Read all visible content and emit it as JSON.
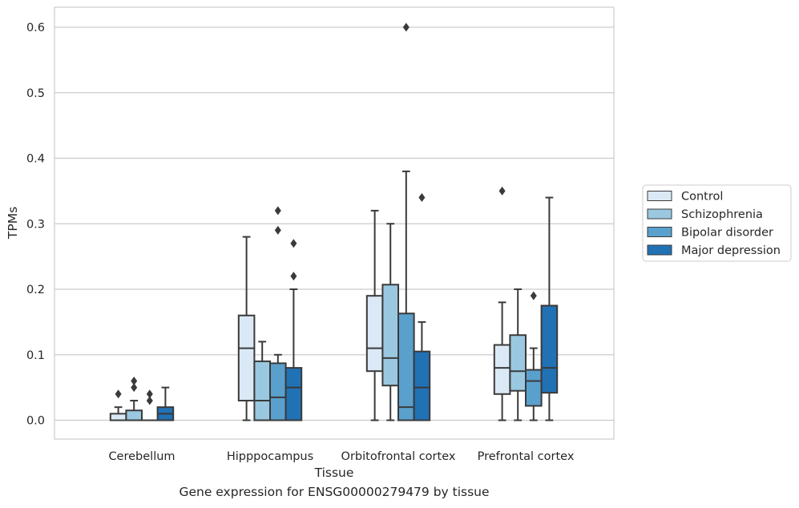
{
  "caption": "Gene expression for ENSG00000279479 by tissue",
  "chart_data": {
    "type": "box",
    "xlabel": "Tissue",
    "ylabel": "TPMs",
    "ylim": [
      -0.03,
      0.63
    ],
    "yticks": [
      0.0,
      0.1,
      0.2,
      0.3,
      0.4,
      0.5,
      0.6
    ],
    "grid": "horizontal",
    "legend_position": "right",
    "categories": [
      "Cerebellum",
      "Hipppocampus",
      "Orbitofrontal cortex",
      "Prefrontal cortex"
    ],
    "series": [
      {
        "name": "Control",
        "color": "#dbe9f6",
        "boxes": [
          {
            "q1": 0.0,
            "median": 0.0,
            "q3": 0.01,
            "whislo": 0.0,
            "whishi": 0.02,
            "fliers": [
              0.04
            ]
          },
          {
            "q1": 0.03,
            "median": 0.11,
            "q3": 0.16,
            "whislo": 0.0,
            "whishi": 0.28,
            "fliers": []
          },
          {
            "q1": 0.075,
            "median": 0.11,
            "q3": 0.19,
            "whislo": 0.0,
            "whishi": 0.32,
            "fliers": []
          },
          {
            "q1": 0.04,
            "median": 0.08,
            "q3": 0.115,
            "whislo": 0.0,
            "whishi": 0.18,
            "fliers": [
              0.35
            ]
          }
        ]
      },
      {
        "name": "Schizophrenia",
        "color": "#9ac8e0",
        "boxes": [
          {
            "q1": 0.0,
            "median": 0.0,
            "q3": 0.015,
            "whislo": 0.0,
            "whishi": 0.03,
            "fliers": [
              0.05,
              0.06
            ]
          },
          {
            "q1": 0.0,
            "median": 0.03,
            "q3": 0.09,
            "whislo": 0.0,
            "whishi": 0.12,
            "fliers": []
          },
          {
            "q1": 0.053,
            "median": 0.095,
            "q3": 0.207,
            "whislo": 0.0,
            "whishi": 0.3,
            "fliers": []
          },
          {
            "q1": 0.045,
            "median": 0.075,
            "q3": 0.13,
            "whislo": 0.0,
            "whishi": 0.2,
            "fliers": []
          }
        ]
      },
      {
        "name": "Bipolar disorder",
        "color": "#5aa0cd",
        "boxes": [
          {
            "q1": 0.0,
            "median": 0.0,
            "q3": 0.0,
            "whislo": 0.0,
            "whishi": 0.0,
            "fliers": [
              0.03,
              0.04
            ]
          },
          {
            "q1": 0.0,
            "median": 0.035,
            "q3": 0.087,
            "whislo": 0.0,
            "whishi": 0.1,
            "fliers": [
              0.29,
              0.32
            ]
          },
          {
            "q1": 0.0,
            "median": 0.02,
            "q3": 0.163,
            "whislo": 0.0,
            "whishi": 0.38,
            "fliers": [
              0.6
            ]
          },
          {
            "q1": 0.022,
            "median": 0.06,
            "q3": 0.077,
            "whislo": 0.0,
            "whishi": 0.11,
            "fliers": [
              0.19
            ]
          }
        ]
      },
      {
        "name": "Major depression",
        "color": "#2171b5",
        "boxes": [
          {
            "q1": 0.0,
            "median": 0.01,
            "q3": 0.02,
            "whislo": 0.0,
            "whishi": 0.05,
            "fliers": []
          },
          {
            "q1": 0.0,
            "median": 0.05,
            "q3": 0.08,
            "whislo": 0.0,
            "whishi": 0.2,
            "fliers": [
              0.22,
              0.27
            ]
          },
          {
            "q1": 0.0,
            "median": 0.05,
            "q3": 0.105,
            "whislo": 0.0,
            "whishi": 0.15,
            "fliers": [
              0.34
            ]
          },
          {
            "q1": 0.042,
            "median": 0.08,
            "q3": 0.175,
            "whislo": 0.0,
            "whishi": 0.34,
            "fliers": []
          }
        ]
      }
    ]
  }
}
